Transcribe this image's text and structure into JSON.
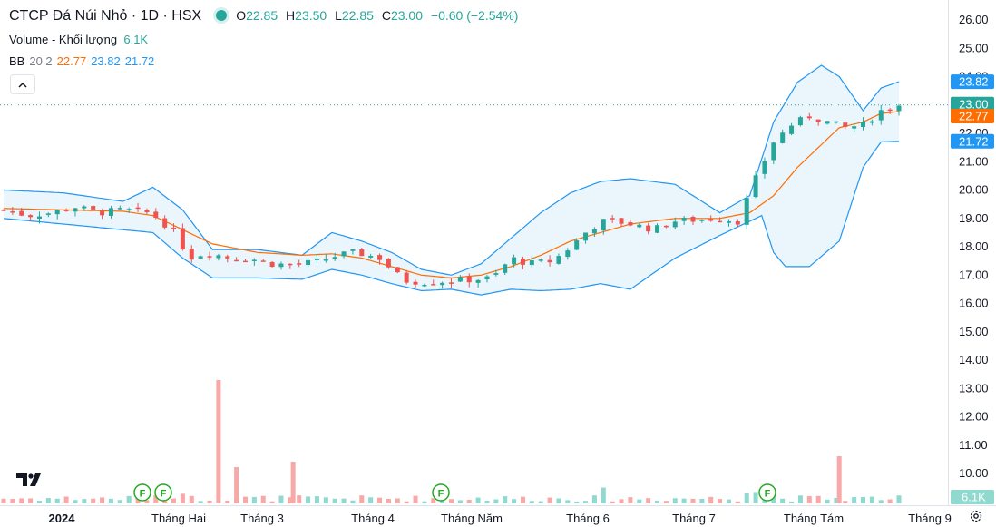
{
  "header": {
    "symbol": "CTCP Đá Núi Nhỏ · 1D · HSX",
    "open_label": "O",
    "open": "22.85",
    "high_label": "H",
    "high": "23.50",
    "low_label": "L",
    "low": "22.85",
    "close_label": "C",
    "close": "23.00",
    "change": "−0.60 (−2.54%)"
  },
  "volume_legend": {
    "label": "Volume - Khối lượng",
    "value": "6.1K"
  },
  "bb_legend": {
    "label": "BB",
    "params": "20 2",
    "basis": "22.77",
    "upper": "23.82",
    "lower": "21.72"
  },
  "collapse_icon": "chevron-up-icon",
  "colors": {
    "up": "#26a69a",
    "down": "#ef5350",
    "vol_up": "#8fd9cf",
    "vol_down": "#f7a9a7",
    "basis": "#ff6d00",
    "band": "#2196f3",
    "band_fill": "#e6f2fb",
    "price_line": "#26a69a"
  },
  "chart_data": {
    "type": "candlestick",
    "y_axis": {
      "min": 10.0,
      "max": 26.0,
      "ticks": [
        "26.00",
        "25.00",
        "24.00",
        "23.00",
        "22.00",
        "21.00",
        "20.00",
        "19.00",
        "18.00",
        "17.00",
        "16.00",
        "15.00",
        "14.00",
        "13.00",
        "12.00",
        "11.00",
        "10.00"
      ]
    },
    "x_axis": {
      "labels": [
        "2024",
        "Tháng Hai",
        "Tháng 3",
        "Tháng 4",
        "Tháng Năm",
        "Tháng 6",
        "Tháng 7",
        "Tháng Tám",
        "Tháng 9"
      ]
    },
    "price_tags": [
      {
        "value": 23.82,
        "text": "23.82",
        "kind": "upper"
      },
      {
        "value": 23.0,
        "text": "23.00",
        "kind": "last"
      },
      {
        "value": 22.77,
        "text": "22.77",
        "kind": "basis"
      },
      {
        "value": 21.72,
        "text": "21.72",
        "kind": "lower"
      }
    ],
    "volume_tag": "6.1K",
    "dividend_flags": [
      {
        "x": "Tháng Hai",
        "offset_days": -11,
        "text": "F"
      },
      {
        "x": "Tháng Hai",
        "offset_days": -7,
        "text": "F"
      },
      {
        "x": "Tháng Năm",
        "offset_days": 0,
        "text": "F"
      },
      {
        "x": "Tháng Tám",
        "offset_days": -14,
        "text": "F"
      }
    ],
    "close_path": [
      [
        0,
        19.3
      ],
      [
        8,
        19.1
      ],
      [
        16,
        19.2
      ],
      [
        24,
        19.4
      ],
      [
        32,
        19.2
      ],
      [
        40,
        19.3
      ],
      [
        48,
        19.2
      ],
      [
        52,
        19.0
      ],
      [
        58,
        18.4
      ],
      [
        62,
        17.6
      ],
      [
        68,
        17.8
      ],
      [
        76,
        17.6
      ],
      [
        84,
        17.55
      ],
      [
        90,
        17.4
      ],
      [
        98,
        17.35
      ],
      [
        106,
        17.5
      ],
      [
        112,
        17.7
      ],
      [
        118,
        17.8
      ],
      [
        126,
        17.6
      ],
      [
        134,
        16.8
      ],
      [
        142,
        16.75
      ],
      [
        150,
        16.8
      ],
      [
        158,
        16.85
      ],
      [
        164,
        16.9
      ],
      [
        170,
        17.6
      ],
      [
        176,
        17.4
      ],
      [
        184,
        17.5
      ],
      [
        190,
        18.0
      ],
      [
        196,
        18.6
      ],
      [
        202,
        18.95
      ],
      [
        210,
        18.8
      ],
      [
        218,
        18.6
      ],
      [
        224,
        18.9
      ],
      [
        232,
        18.95
      ],
      [
        240,
        19.0
      ],
      [
        246,
        18.9
      ],
      [
        252,
        20.4
      ],
      [
        258,
        21.7
      ],
      [
        264,
        22.3
      ],
      [
        270,
        22.6
      ],
      [
        276,
        22.4
      ],
      [
        282,
        22.2
      ],
      [
        288,
        22.3
      ],
      [
        294,
        22.8
      ],
      [
        300,
        23.0
      ]
    ],
    "bb_upper_path": [
      [
        0,
        20.0
      ],
      [
        20,
        19.9
      ],
      [
        40,
        19.6
      ],
      [
        50,
        20.1
      ],
      [
        60,
        19.3
      ],
      [
        70,
        17.9
      ],
      [
        85,
        17.9
      ],
      [
        100,
        17.7
      ],
      [
        110,
        18.5
      ],
      [
        120,
        18.2
      ],
      [
        130,
        17.8
      ],
      [
        140,
        17.2
      ],
      [
        150,
        17.0
      ],
      [
        160,
        17.4
      ],
      [
        170,
        18.3
      ],
      [
        180,
        19.2
      ],
      [
        190,
        19.9
      ],
      [
        200,
        20.3
      ],
      [
        210,
        20.4
      ],
      [
        225,
        20.2
      ],
      [
        240,
        19.2
      ],
      [
        250,
        19.8
      ],
      [
        258,
        22.4
      ],
      [
        266,
        23.8
      ],
      [
        274,
        24.4
      ],
      [
        280,
        24.0
      ],
      [
        288,
        22.8
      ],
      [
        294,
        23.6
      ],
      [
        300,
        23.82
      ]
    ],
    "bb_lower_path": [
      [
        0,
        19.0
      ],
      [
        20,
        18.8
      ],
      [
        40,
        18.6
      ],
      [
        50,
        18.5
      ],
      [
        60,
        17.6
      ],
      [
        70,
        16.9
      ],
      [
        85,
        16.9
      ],
      [
        100,
        16.85
      ],
      [
        110,
        17.2
      ],
      [
        120,
        17.0
      ],
      [
        130,
        16.7
      ],
      [
        140,
        16.45
      ],
      [
        150,
        16.5
      ],
      [
        160,
        16.3
      ],
      [
        170,
        16.5
      ],
      [
        180,
        16.45
      ],
      [
        190,
        16.5
      ],
      [
        200,
        16.7
      ],
      [
        210,
        16.5
      ],
      [
        225,
        17.6
      ],
      [
        240,
        18.4
      ],
      [
        250,
        18.9
      ],
      [
        254,
        19.1
      ],
      [
        258,
        17.8
      ],
      [
        262,
        17.3
      ],
      [
        270,
        17.3
      ],
      [
        280,
        18.2
      ],
      [
        288,
        20.8
      ],
      [
        294,
        21.7
      ],
      [
        300,
        21.72
      ]
    ],
    "bb_basis_path": [
      [
        0,
        19.35
      ],
      [
        20,
        19.3
      ],
      [
        40,
        19.25
      ],
      [
        50,
        19.1
      ],
      [
        60,
        18.6
      ],
      [
        70,
        18.1
      ],
      [
        85,
        17.8
      ],
      [
        100,
        17.7
      ],
      [
        110,
        17.75
      ],
      [
        120,
        17.6
      ],
      [
        130,
        17.3
      ],
      [
        140,
        17.0
      ],
      [
        150,
        16.9
      ],
      [
        160,
        17.0
      ],
      [
        170,
        17.3
      ],
      [
        180,
        17.7
      ],
      [
        190,
        18.2
      ],
      [
        200,
        18.5
      ],
      [
        210,
        18.8
      ],
      [
        225,
        19.0
      ],
      [
        240,
        19.0
      ],
      [
        250,
        19.2
      ],
      [
        258,
        19.8
      ],
      [
        266,
        20.8
      ],
      [
        274,
        21.6
      ],
      [
        280,
        22.2
      ],
      [
        288,
        22.4
      ],
      [
        294,
        22.7
      ],
      [
        300,
        22.77
      ]
    ]
  }
}
